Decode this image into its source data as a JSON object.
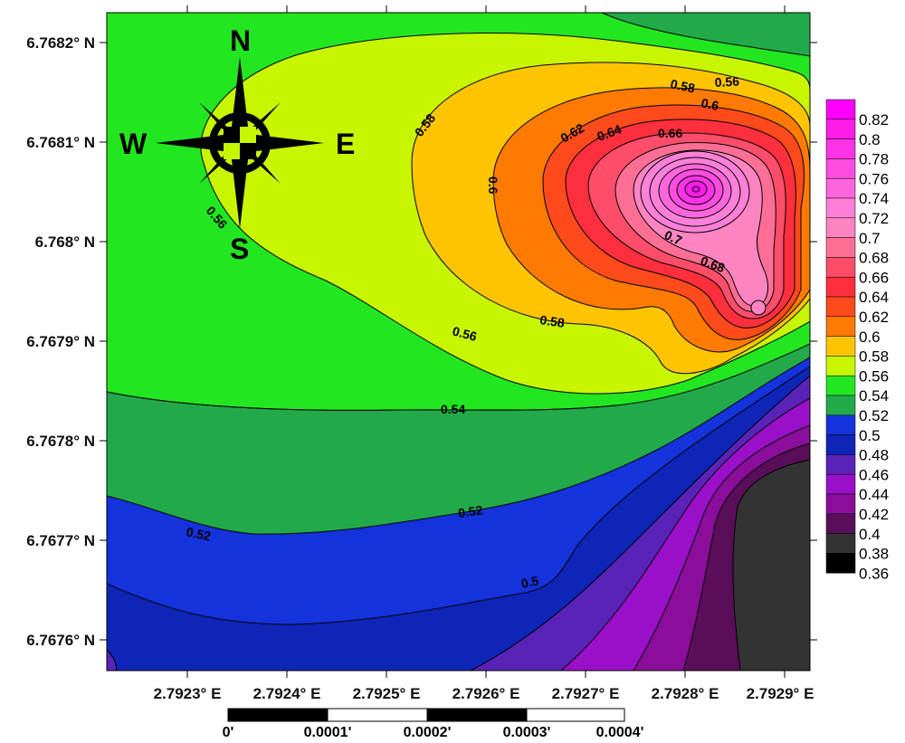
{
  "map": {
    "latitude_labels": [
      "6.7682° N",
      "6.7681° N",
      "6.768° N",
      "6.7679° N",
      "6.7678° N",
      "6.7677° N",
      "6.7676° N"
    ],
    "longitude_labels": [
      "2.7923° E",
      "2.7924° E",
      "2.7925° E",
      "2.7926° E",
      "2.7927° E",
      "2.7928° E",
      "2.7929° E"
    ],
    "compass": {
      "north": "N",
      "south": "S",
      "east": "E",
      "west": "W"
    },
    "scale_bar": {
      "labels": [
        "0'",
        "0.0001'",
        "0.0002'",
        "0.0003'",
        "0.0004'"
      ]
    },
    "contour_labels": {
      "c054": "0.54",
      "c052a": "0.52",
      "c052b": "0.52",
      "c050": "0.5",
      "c056a": "0.56",
      "c056b": "0.56",
      "c056c": "0.56",
      "c058a": "0.58",
      "c058b": "0.58",
      "c058c": "0.58",
      "c06a": "0.6",
      "c06b": "0.6",
      "c062": "0.62",
      "c064": "0.64",
      "c066": "0.66",
      "c068": "0.68",
      "c07": "0.7"
    },
    "legend": [
      {
        "value": "0.82",
        "color": "#ff00ff"
      },
      {
        "value": "0.8",
        "color": "#ff1ee8"
      },
      {
        "value": "0.78",
        "color": "#ff33e6"
      },
      {
        "value": "0.76",
        "color": "#ff4de0"
      },
      {
        "value": "0.74",
        "color": "#ff66dc"
      },
      {
        "value": "0.72",
        "color": "#ff80d8"
      },
      {
        "value": "0.7",
        "color": "#ff85c2"
      },
      {
        "value": "0.68",
        "color": "#ff6f95"
      },
      {
        "value": "0.66",
        "color": "#ff4d6a"
      },
      {
        "value": "0.64",
        "color": "#ff2f3d"
      },
      {
        "value": "0.62",
        "color": "#ff4a1c"
      },
      {
        "value": "0.6",
        "color": "#ff7a00"
      },
      {
        "value": "0.58",
        "color": "#ffc400"
      },
      {
        "value": "0.56",
        "color": "#c8f500"
      },
      {
        "value": "0.54",
        "color": "#22e620"
      },
      {
        "value": "0.52",
        "color": "#22aa4a"
      },
      {
        "value": "0.5",
        "color": "#1433dd"
      },
      {
        "value": "0.48",
        "color": "#0e25b8"
      },
      {
        "value": "0.46",
        "color": "#5a23b8"
      },
      {
        "value": "0.44",
        "color": "#9a10c8"
      },
      {
        "value": "0.42",
        "color": "#8a0e9a"
      },
      {
        "value": "0.4",
        "color": "#5a0e5a"
      },
      {
        "value": "0.38",
        "color": "#333333"
      },
      {
        "value": "0.36",
        "color": "#000000"
      }
    ]
  }
}
